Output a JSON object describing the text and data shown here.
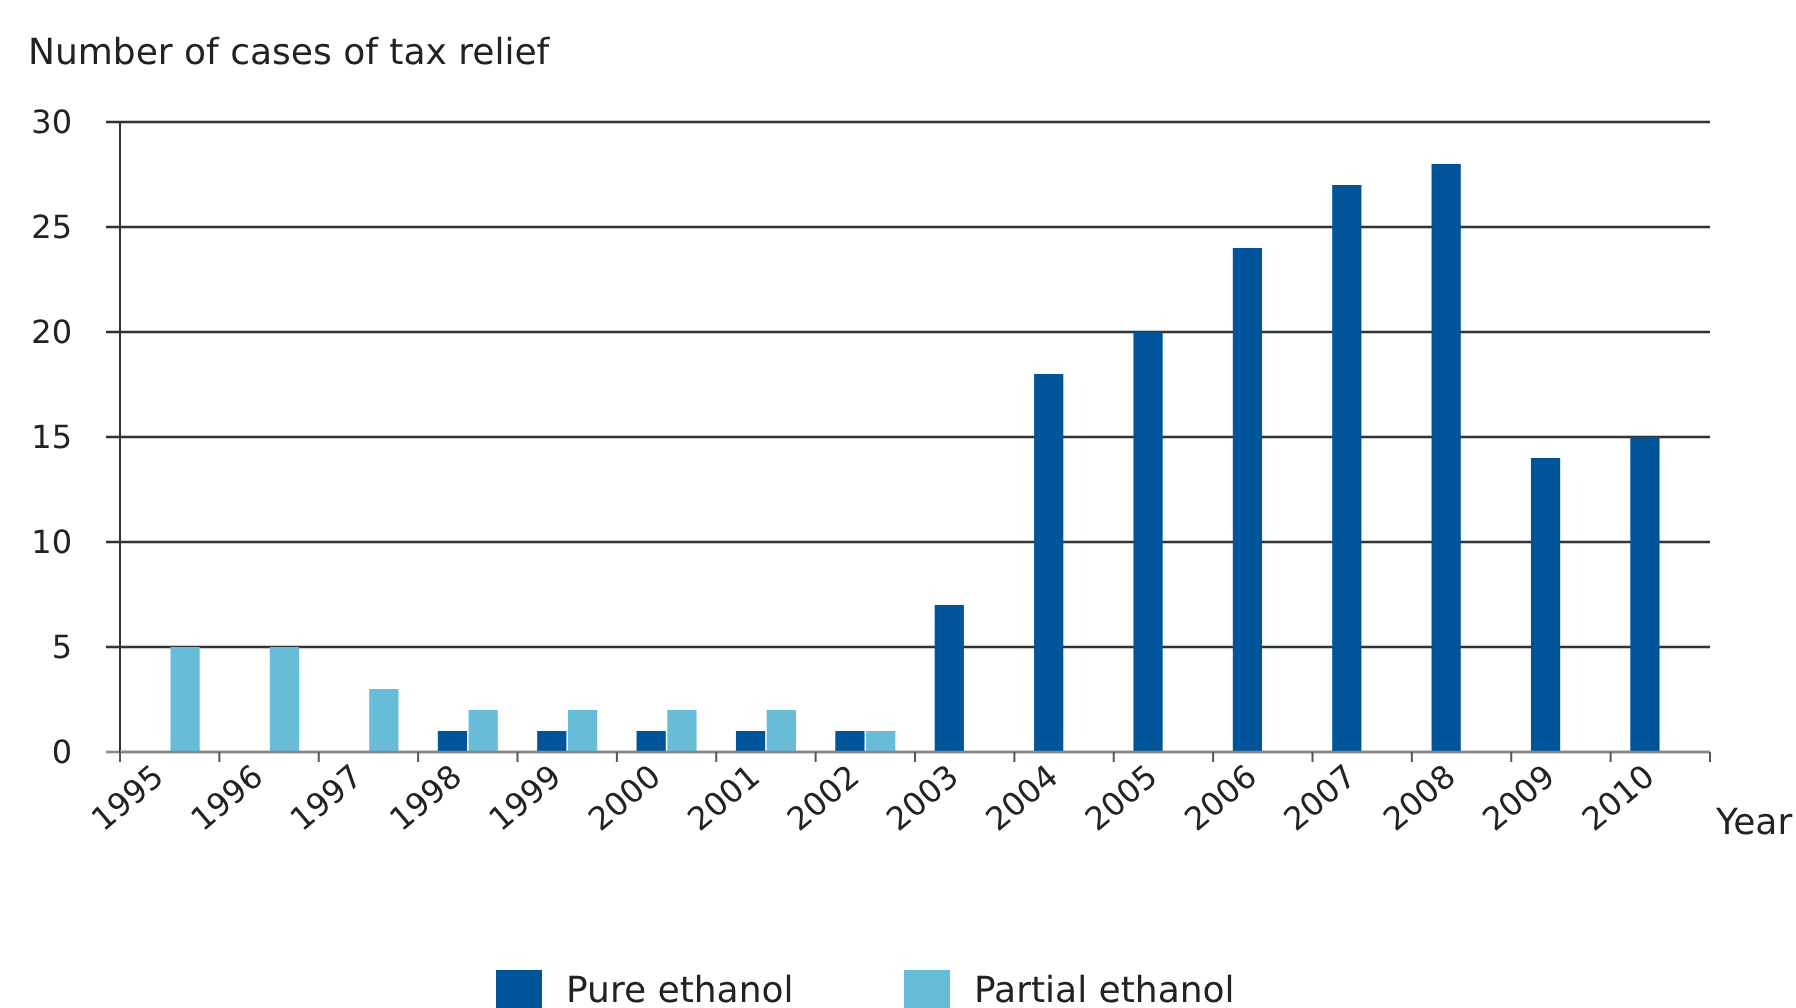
{
  "chart_data": {
    "type": "bar",
    "ylabel": "Number of cases of tax relief",
    "xlabel": "Year",
    "categories": [
      "1995",
      "1996",
      "1997",
      "1998",
      "1999",
      "2000",
      "2001",
      "2002",
      "2003",
      "2004",
      "2005",
      "2006",
      "2007",
      "2008",
      "2009",
      "2010"
    ],
    "series": [
      {
        "name": "Pure ethanol",
        "color": "#00559a",
        "values": [
          null,
          null,
          null,
          1,
          1,
          1,
          1,
          1,
          7,
          18,
          20,
          24,
          27,
          28,
          14,
          15
        ]
      },
      {
        "name": "Partial ethanol",
        "color": "#67bcd8",
        "values": [
          5,
          5,
          3,
          2,
          2,
          2,
          2,
          1,
          null,
          null,
          null,
          null,
          null,
          null,
          null,
          null
        ]
      }
    ],
    "ylim": [
      0,
      30
    ],
    "yticks": [
      0,
      5,
      10,
      15,
      20,
      25,
      30
    ],
    "grid": "y",
    "legend": "bottom"
  }
}
